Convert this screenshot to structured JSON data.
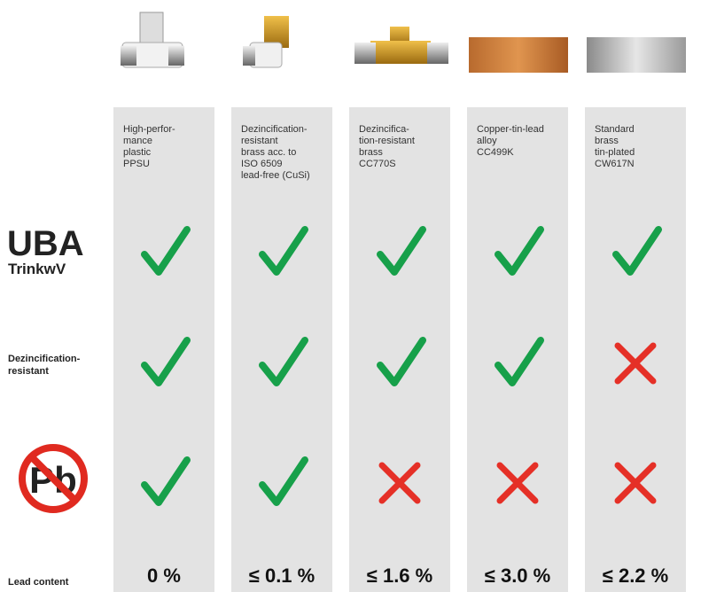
{
  "row_labels": {
    "uba": "UBA",
    "trinkwv": "TrinkwV",
    "dezinc": [
      "Dezincification-",
      "resistant"
    ],
    "lead_icon": "Pb",
    "lead_content": "Lead content"
  },
  "columns": [
    {
      "description": [
        "High-perfor-",
        "mance",
        "plastic",
        "PPSU"
      ],
      "uba": true,
      "dezincification_resistant": true,
      "lead_free": true,
      "lead_content": "0 %"
    },
    {
      "description": [
        "Dezincification-",
        "resistant",
        "brass acc. to",
        "ISO 6509",
        "lead-free (CuSi)"
      ],
      "uba": true,
      "dezincification_resistant": true,
      "lead_free": true,
      "lead_content": "≤ 0.1 %"
    },
    {
      "description": [
        "Dezincifica-",
        "tion-resistant",
        "brass",
        "CC770S"
      ],
      "uba": true,
      "dezincification_resistant": true,
      "lead_free": false,
      "lead_content": "≤ 1.6 %"
    },
    {
      "description": [
        "Copper-tin-lead",
        "alloy",
        "CC499K"
      ],
      "uba": true,
      "dezincification_resistant": true,
      "lead_free": false,
      "lead_content": "≤ 3.0 %"
    },
    {
      "description": [
        "Standard",
        "brass",
        "tin-plated",
        "CW617N"
      ],
      "uba": true,
      "dezincification_resistant": false,
      "lead_free": false,
      "lead_content": "≤ 2.2 %"
    }
  ]
}
